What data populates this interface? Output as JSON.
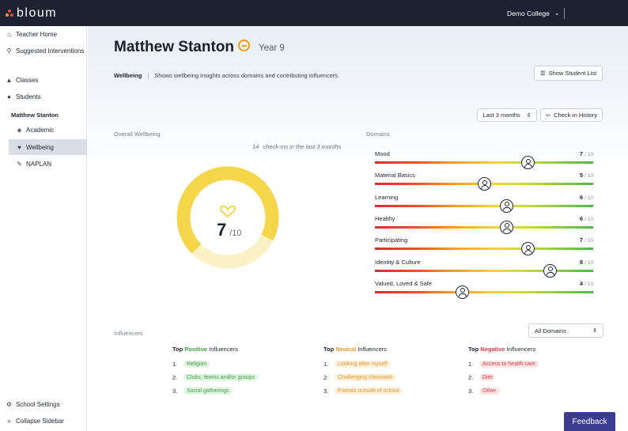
{
  "app": {
    "brand": "bloum",
    "college": "Demo College"
  },
  "sidebar": {
    "teacher_home": "Teacher Home",
    "suggested": "Suggested Interventions",
    "classes": "Classes",
    "students": "Students",
    "student_name": "Matthew Stanton",
    "academic": "Academic",
    "wellbeing": "Wellbeing",
    "naplan": "NAPLAN",
    "school_settings": "School Settings",
    "collapse": "Collapse Sidebar"
  },
  "header": {
    "name": "Matthew Stanton",
    "year": "Year 9",
    "section": "Wellbeing",
    "description": "Shows wellbeing insights across domains and contributing influencers.",
    "show_student_list": "Show Student List"
  },
  "controls": {
    "period": "Last 3 months",
    "checkin_history": "Check-in History"
  },
  "overall": {
    "label": "Overall Wellbeing",
    "checkins_count": "14",
    "checkins_text": "check-ins in the last 3 months",
    "score": "7",
    "out_of": "/10",
    "score_value": 7,
    "max": 10,
    "color": "#f5d64a"
  },
  "domains": {
    "label": "Domains",
    "out_of": "/ 10",
    "items": [
      {
        "name": "Mood",
        "score": "7",
        "value": 7
      },
      {
        "name": "Material Basics",
        "score": "5",
        "value": 5
      },
      {
        "name": "Learning",
        "score": "6",
        "value": 6
      },
      {
        "name": "Healthy",
        "score": "6",
        "value": 6
      },
      {
        "name": "Participating",
        "score": "7",
        "value": 7
      },
      {
        "name": "Identity & Culture",
        "score": "8",
        "value": 8
      },
      {
        "name": "Valued, Loved & Safe",
        "score": "4",
        "value": 4
      }
    ]
  },
  "influencers": {
    "label": "Influencers",
    "filter": "All Domains",
    "top": "Top",
    "suffix": "Influencers",
    "positive": {
      "word": "Positive",
      "items": [
        "Religion",
        "Clubs, teams and/or groups",
        "Social gatherings"
      ]
    },
    "neutral": {
      "word": "Neutral",
      "items": [
        "Looking after myself",
        "Challenging classwork",
        "Friends outside of school"
      ]
    },
    "negative": {
      "word": "Negative",
      "items": [
        "Access to health care",
        "Diet",
        "Other"
      ]
    }
  },
  "feedback": "Feedback"
}
